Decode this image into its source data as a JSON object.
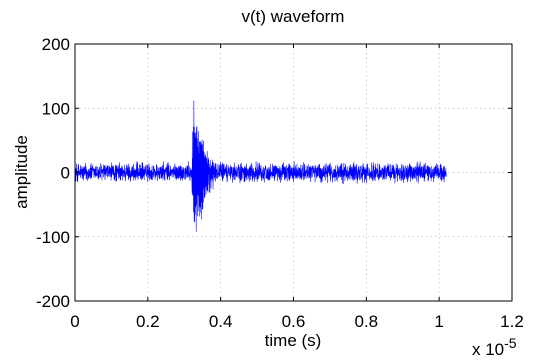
{
  "chart_data": {
    "type": "line",
    "title": "v(t) waveform",
    "xlabel": "time (s)",
    "ylabel": "amplitude",
    "x_multiplier_label": "x 10",
    "x_multiplier_exponent": "-5",
    "xlim": [
      0,
      1.2
    ],
    "ylim": [
      -200,
      200
    ],
    "x_ticks": [
      0,
      0.2,
      0.4,
      0.6,
      0.8,
      1,
      1.2
    ],
    "x_tick_labels": [
      "0",
      "0.2",
      "0.4",
      "0.6",
      "0.8",
      "1",
      "1.2"
    ],
    "y_ticks": [
      -200,
      -100,
      0,
      100,
      200
    ],
    "y_tick_labels": [
      "-200",
      "-100",
      "0",
      "100",
      "200"
    ],
    "grid": true,
    "legend": "none",
    "series": [
      {
        "color": "#0000ff",
        "x_range": [
          0,
          1.02
        ],
        "baseline_amplitude": 18,
        "events": [
          {
            "x": 0.325,
            "peak_max": 135,
            "peak_min": -135,
            "decay_width": 0.02
          },
          {
            "x": 0.345,
            "peak_max": 40,
            "peak_min": -50,
            "decay_width": 0.015
          }
        ]
      }
    ]
  }
}
